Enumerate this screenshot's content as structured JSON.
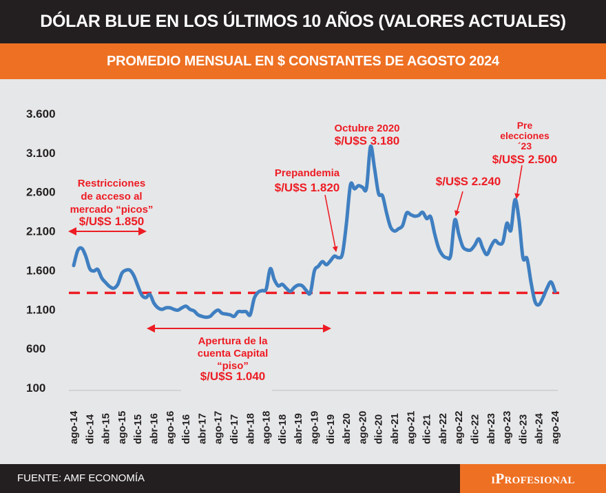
{
  "header": {
    "title": "DÓLAR BLUE EN LOS ÚLTIMOS 10 AÑOS (VALORES ACTUALES)",
    "subtitle": "PROMEDIO MENSUAL EN $ CONSTANTES DE AGOSTO 2024"
  },
  "footer": {
    "source": "FUENTE: AMF ECONOMÍA",
    "brand": "iProfesional"
  },
  "colors": {
    "title_bg": "#231f20",
    "accent": "#ee7023",
    "background": "#e6e7e8",
    "line": "#3f7fc1",
    "annotation": "#ed1c24"
  },
  "chart_data": {
    "type": "line",
    "title": "DÓLAR BLUE EN LOS ÚLTIMOS 10 AÑOS (VALORES ACTUALES)",
    "subtitle": "PROMEDIO MENSUAL EN $ CONSTANTES DE AGOSTO 2024",
    "xlabel": "",
    "ylabel": "",
    "ylim": [
      100,
      3600
    ],
    "yticks": [
      "3.600",
      "3.100",
      "2.600",
      "2.100",
      "1.600",
      "1.100",
      "600",
      "100"
    ],
    "ytick_values": [
      3600,
      3100,
      2600,
      2100,
      1600,
      1100,
      600,
      100
    ],
    "xticks": [
      "ago-14",
      "dic-14",
      "abr-15",
      "ago-15",
      "dic-15",
      "abr-16",
      "ago-16",
      "dic-16",
      "abr-17",
      "ago-17",
      "dic-17",
      "abr-18",
      "ago-18",
      "dic-18",
      "abr-19",
      "ago-19",
      "dic-19",
      "abr-20",
      "ago-20",
      "dic-20",
      "abr-21",
      "ago-21",
      "dic-21",
      "abr-22",
      "ago-22",
      "dic-22",
      "abr-23",
      "ago-23",
      "dic-23",
      "abr-24",
      "ago-24"
    ],
    "x_start": "ago-14",
    "x_end": "ago-24",
    "grid": false,
    "reference_line": {
      "value": 1310,
      "style": "dashed",
      "color": "#ed1c24"
    },
    "series": [
      {
        "values": [
          1660,
          1850,
          1880,
          1780,
          1620,
          1590,
          1610,
          1500,
          1440,
          1390,
          1370,
          1420,
          1560,
          1600,
          1600,
          1530,
          1400,
          1280,
          1250,
          1290,
          1180,
          1120,
          1100,
          1120,
          1120,
          1100,
          1090,
          1120,
          1140,
          1100,
          1080,
          1030,
          1010,
          1000,
          1010,
          1060,
          1090,
          1050,
          1040,
          1030,
          1010,
          1070,
          1070,
          1070,
          1030,
          1240,
          1320,
          1340,
          1360,
          1620,
          1480,
          1400,
          1420,
          1370,
          1330,
          1380,
          1410,
          1400,
          1340,
          1310,
          1590,
          1650,
          1710,
          1670,
          1720,
          1780,
          1760,
          1810,
          2200,
          2690,
          2640,
          2680,
          2660,
          2650,
          3180,
          2900,
          2580,
          2550,
          2330,
          2150,
          2100,
          2130,
          2170,
          2330,
          2310,
          2290,
          2300,
          2340,
          2260,
          2280,
          2060,
          1880,
          1790,
          1760,
          1790,
          2240,
          2060,
          1900,
          1860,
          1860,
          1920,
          2000,
          1880,
          1800,
          1900,
          1980,
          1940,
          1960,
          2200,
          2110,
          2500,
          2250,
          1760,
          1750,
          1450,
          1200,
          1160,
          1250,
          1370,
          1450,
          1330
        ]
      }
    ],
    "annotations": {
      "picos": {
        "lines": [
          "Restricciones",
          "de acceso al",
          "mercado “picos”"
        ],
        "value": "$/U$S 1.850"
      },
      "piso": {
        "lines": [
          "Apertura de la",
          "cuenta Capital",
          "“piso”"
        ],
        "value": "$/U$S 1.040"
      },
      "prepandemia": {
        "lines": [
          "Prepandemia"
        ],
        "value": "$/U$S 1.820"
      },
      "octubre": {
        "lines": [
          "Octubre 2020"
        ],
        "value": "$/U$S 3.180"
      },
      "peak22": {
        "lines": [],
        "value": "$/U$S 2.240"
      },
      "pre_elecciones": {
        "lines": [
          "Pre",
          "elecciones",
          "´23"
        ],
        "value": "$/U$S 2.500"
      }
    }
  }
}
